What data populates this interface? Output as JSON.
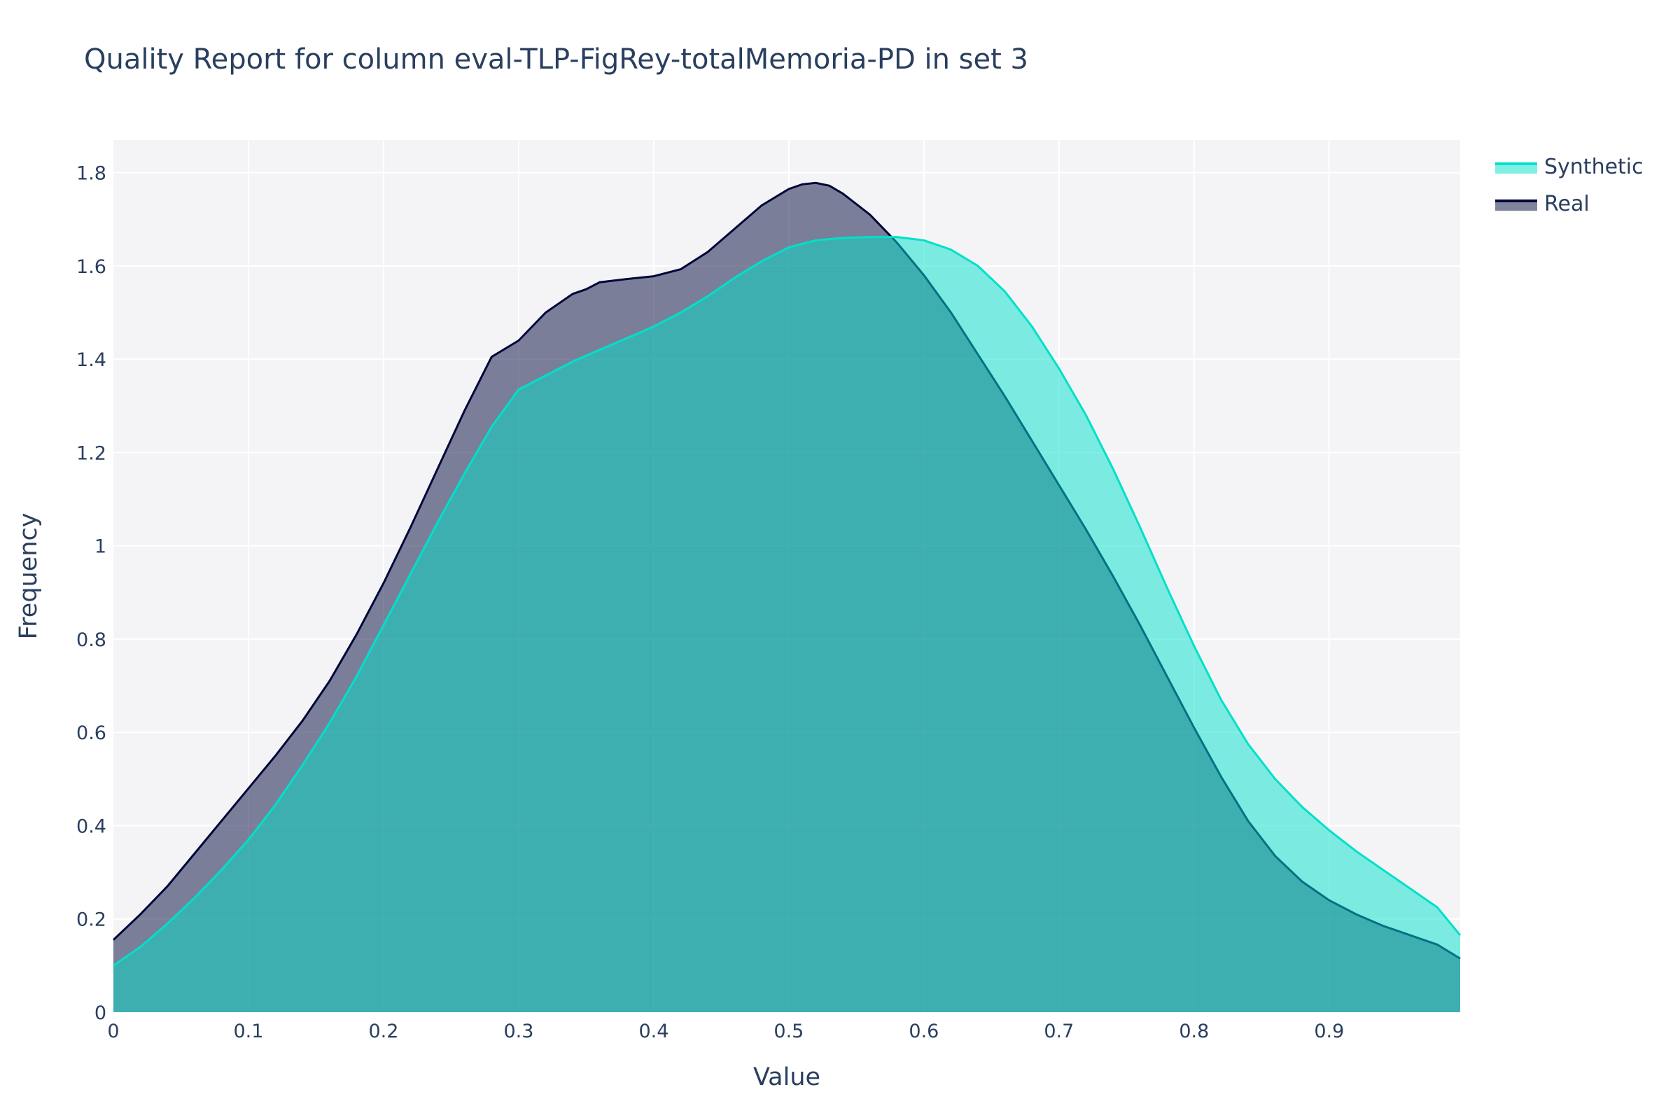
{
  "chart_data": {
    "type": "area",
    "title": "Quality Report for column eval-TLP-FigRey-totalMemoria-PD in set 3",
    "xlabel": "Value",
    "ylabel": "Frequency",
    "xlim": [
      0,
      0.997
    ],
    "ylim": [
      0,
      1.87
    ],
    "x_ticks": [
      0,
      0.1,
      0.2,
      0.3,
      0.4,
      0.5,
      0.6,
      0.7,
      0.8,
      0.9
    ],
    "x_tick_labels": [
      "0",
      "0.1",
      "0.2",
      "0.3",
      "0.4",
      "0.5",
      "0.6",
      "0.7",
      "0.8",
      "0.9"
    ],
    "y_ticks": [
      0,
      0.2,
      0.4,
      0.6,
      0.8,
      1,
      1.2,
      1.4,
      1.6,
      1.8
    ],
    "y_tick_labels": [
      "0",
      "0.2",
      "0.4",
      "0.6",
      "0.8",
      "1",
      "1.2",
      "1.4",
      "1.6",
      "1.8"
    ],
    "grid": true,
    "legend_position": "top-right",
    "series": [
      {
        "name": "Real",
        "color": "#01073a",
        "fill": "rgba(1,7,58,0.5)",
        "points": [
          [
            0,
            0.155
          ],
          [
            0.02,
            0.21
          ],
          [
            0.04,
            0.27
          ],
          [
            0.06,
            0.34
          ],
          [
            0.08,
            0.41
          ],
          [
            0.1,
            0.48
          ],
          [
            0.12,
            0.55
          ],
          [
            0.14,
            0.625
          ],
          [
            0.16,
            0.71
          ],
          [
            0.18,
            0.81
          ],
          [
            0.2,
            0.92
          ],
          [
            0.22,
            1.04
          ],
          [
            0.24,
            1.165
          ],
          [
            0.26,
            1.29
          ],
          [
            0.28,
            1.405
          ],
          [
            0.3,
            1.44
          ],
          [
            0.31,
            1.47
          ],
          [
            0.32,
            1.5
          ],
          [
            0.33,
            1.52
          ],
          [
            0.34,
            1.54
          ],
          [
            0.35,
            1.55
          ],
          [
            0.36,
            1.565
          ],
          [
            0.38,
            1.572
          ],
          [
            0.4,
            1.578
          ],
          [
            0.42,
            1.593
          ],
          [
            0.44,
            1.63
          ],
          [
            0.46,
            1.68
          ],
          [
            0.48,
            1.73
          ],
          [
            0.5,
            1.765
          ],
          [
            0.51,
            1.775
          ],
          [
            0.52,
            1.778
          ],
          [
            0.53,
            1.772
          ],
          [
            0.54,
            1.755
          ],
          [
            0.56,
            1.71
          ],
          [
            0.58,
            1.65
          ],
          [
            0.6,
            1.58
          ],
          [
            0.62,
            1.5
          ],
          [
            0.64,
            1.41
          ],
          [
            0.66,
            1.32
          ],
          [
            0.68,
            1.225
          ],
          [
            0.7,
            1.13
          ],
          [
            0.72,
            1.035
          ],
          [
            0.74,
            0.935
          ],
          [
            0.76,
            0.83
          ],
          [
            0.78,
            0.72
          ],
          [
            0.8,
            0.61
          ],
          [
            0.82,
            0.505
          ],
          [
            0.84,
            0.41
          ],
          [
            0.86,
            0.335
          ],
          [
            0.88,
            0.28
          ],
          [
            0.9,
            0.24
          ],
          [
            0.92,
            0.21
          ],
          [
            0.94,
            0.185
          ],
          [
            0.96,
            0.165
          ],
          [
            0.98,
            0.145
          ],
          [
            0.997,
            0.115
          ]
        ]
      },
      {
        "name": "Synthetic",
        "color": "#01e0c9",
        "fill": "rgba(1,224,201,0.5)",
        "points": [
          [
            0,
            0.1
          ],
          [
            0.02,
            0.14
          ],
          [
            0.04,
            0.19
          ],
          [
            0.06,
            0.245
          ],
          [
            0.08,
            0.305
          ],
          [
            0.1,
            0.37
          ],
          [
            0.12,
            0.445
          ],
          [
            0.14,
            0.53
          ],
          [
            0.16,
            0.62
          ],
          [
            0.18,
            0.72
          ],
          [
            0.2,
            0.83
          ],
          [
            0.22,
            0.94
          ],
          [
            0.24,
            1.05
          ],
          [
            0.26,
            1.155
          ],
          [
            0.28,
            1.255
          ],
          [
            0.3,
            1.335
          ],
          [
            0.32,
            1.365
          ],
          [
            0.34,
            1.395
          ],
          [
            0.36,
            1.42
          ],
          [
            0.38,
            1.445
          ],
          [
            0.4,
            1.47
          ],
          [
            0.42,
            1.5
          ],
          [
            0.44,
            1.535
          ],
          [
            0.46,
            1.575
          ],
          [
            0.48,
            1.61
          ],
          [
            0.5,
            1.64
          ],
          [
            0.52,
            1.655
          ],
          [
            0.54,
            1.66
          ],
          [
            0.56,
            1.662
          ],
          [
            0.58,
            1.662
          ],
          [
            0.6,
            1.655
          ],
          [
            0.62,
            1.635
          ],
          [
            0.64,
            1.6
          ],
          [
            0.66,
            1.545
          ],
          [
            0.68,
            1.47
          ],
          [
            0.7,
            1.38
          ],
          [
            0.72,
            1.28
          ],
          [
            0.74,
            1.165
          ],
          [
            0.76,
            1.04
          ],
          [
            0.78,
            0.91
          ],
          [
            0.8,
            0.785
          ],
          [
            0.82,
            0.67
          ],
          [
            0.84,
            0.575
          ],
          [
            0.86,
            0.5
          ],
          [
            0.88,
            0.44
          ],
          [
            0.9,
            0.39
          ],
          [
            0.92,
            0.345
          ],
          [
            0.94,
            0.305
          ],
          [
            0.96,
            0.265
          ],
          [
            0.98,
            0.225
          ],
          [
            0.997,
            0.165
          ]
        ]
      }
    ]
  }
}
